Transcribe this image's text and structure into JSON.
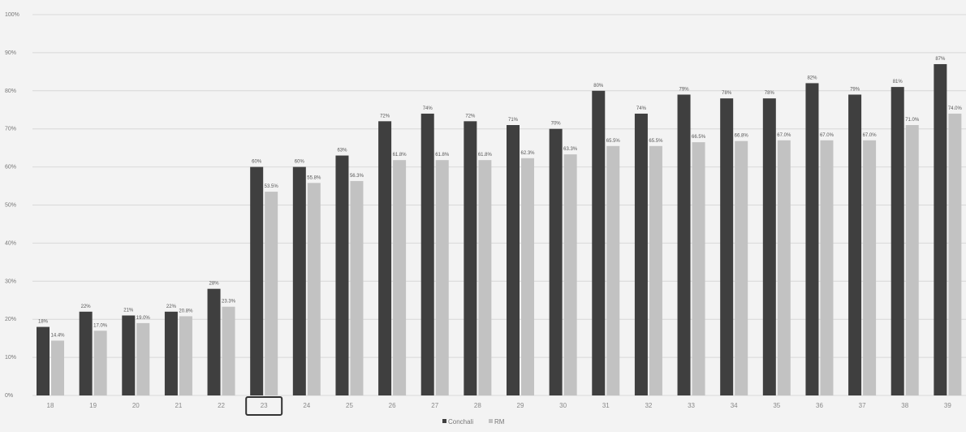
{
  "chart_data": {
    "type": "bar",
    "title": "",
    "xlabel": "",
    "ylabel": "",
    "ylim": [
      0,
      100
    ],
    "y_ticks": [
      "0%",
      "10%",
      "20%",
      "30%",
      "40%",
      "50%",
      "60%",
      "70%",
      "80%",
      "90%",
      "100%"
    ],
    "grid": true,
    "legend": "bottom-center",
    "categories": [
      "18",
      "19",
      "20",
      "21",
      "22",
      "23",
      "24",
      "25",
      "26",
      "27",
      "28",
      "29",
      "30",
      "31",
      "32",
      "33",
      "34",
      "35",
      "36",
      "37",
      "38",
      "39"
    ],
    "highlighted_category": "23",
    "series": [
      {
        "name": "Conchali",
        "color": "#3f3f3f",
        "values": [
          18,
          22,
          21,
          22,
          28,
          60,
          60,
          63,
          72,
          74,
          72,
          71,
          70,
          80,
          74,
          79,
          78,
          78,
          82,
          79,
          81,
          87
        ],
        "labels": [
          "18%",
          "22%",
          "21%",
          "22%",
          "28%",
          "60%",
          "60%",
          "63%",
          "72%",
          "74%",
          "72%",
          "71%",
          "70%",
          "80%",
          "74%",
          "79%",
          "78%",
          "78%",
          "82%",
          "79%",
          "81%",
          "87%"
        ]
      },
      {
        "name": "RM",
        "color": "#c2c2c2",
        "values": [
          14.4,
          17.0,
          19.0,
          20.8,
          23.3,
          53.5,
          55.8,
          56.3,
          61.8,
          61.8,
          61.8,
          62.3,
          63.3,
          65.5,
          65.5,
          66.5,
          66.8,
          67.0,
          67.0,
          67.0,
          71.0,
          74.0
        ],
        "labels": [
          "14.4%",
          "17.0%",
          "19.0%",
          "20.8%",
          "23.3%",
          "53.5%",
          "55.8%",
          "56.3%",
          "61.8%",
          "61.8%",
          "61.8%",
          "62.3%",
          "63.3%",
          "65.5%",
          "65.5%",
          "66.5%",
          "66.8%",
          "67.0%",
          "67.0%",
          "67.0%",
          "71.0%",
          "74.0%"
        ]
      }
    ]
  }
}
